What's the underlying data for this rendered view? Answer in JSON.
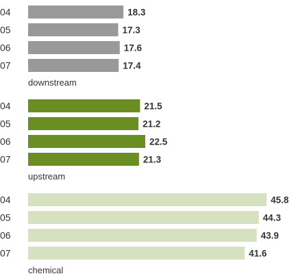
{
  "chart_data": {
    "type": "bar",
    "orientation": "horizontal",
    "title": "",
    "xlabel": "",
    "ylabel": "",
    "grid": false,
    "value_labels": true,
    "groups": [
      {
        "name": "downstream",
        "color": "#999999",
        "categories": [
          "04",
          "05",
          "06",
          "07"
        ],
        "values": [
          18.3,
          17.3,
          17.6,
          17.4
        ]
      },
      {
        "name": "upstream",
        "color": "#6b8e23",
        "categories": [
          "04",
          "05",
          "06",
          "07"
        ],
        "values": [
          21.5,
          21.2,
          22.5,
          21.3
        ]
      },
      {
        "name": "chemical",
        "color": "#d6e1c0",
        "categories": [
          "04",
          "05",
          "06",
          "07"
        ],
        "values": [
          45.8,
          44.3,
          43.9,
          41.6
        ]
      }
    ]
  }
}
